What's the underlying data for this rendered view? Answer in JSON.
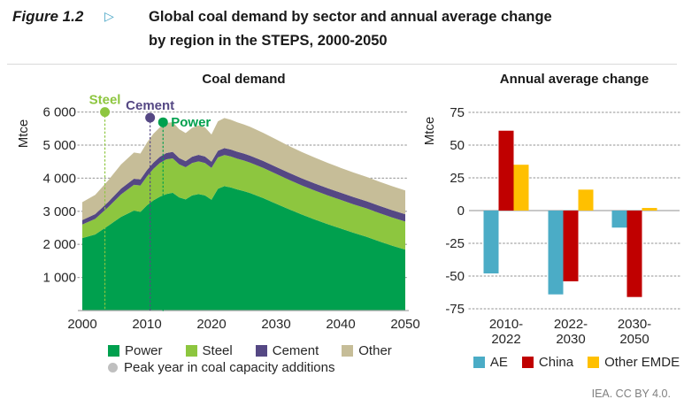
{
  "header": {
    "figure_label": "Figure 1.2",
    "figure_marker": "▷",
    "title_line1": "Global coal demand by sector and annual average change",
    "title_line2": "by region in the STEPS, 2000-2050"
  },
  "footer": {
    "credit": "IEA. CC BY 4.0."
  },
  "colors": {
    "accent_marker": "#44A3C4",
    "grid": "#A6A6A6",
    "axis_text": "#262626",
    "peak_marker_gray": "#BFBFBF"
  },
  "chart_data": [
    {
      "type": "area",
      "stacked": true,
      "title": "Coal demand",
      "ylabel": "Mtce",
      "ylim": [
        0,
        6000
      ],
      "yticks": [
        1000,
        2000,
        3000,
        4000,
        5000,
        6000
      ],
      "xticks": [
        2000,
        2010,
        2020,
        2030,
        2040,
        2050
      ],
      "grid": "dotted",
      "x": [
        2000,
        2002,
        2004,
        2006,
        2008,
        2009,
        2010,
        2011,
        2012,
        2013,
        2014,
        2015,
        2016,
        2017,
        2018,
        2019,
        2020,
        2021,
        2022,
        2023,
        2024,
        2025,
        2026,
        2028,
        2030,
        2032,
        2034,
        2036,
        2038,
        2040,
        2042,
        2044,
        2046,
        2048,
        2050
      ],
      "series": [
        {
          "name": "Power",
          "color": "#00A04E",
          "values": [
            2190,
            2300,
            2560,
            2830,
            3020,
            2980,
            3180,
            3330,
            3440,
            3520,
            3560,
            3420,
            3360,
            3480,
            3520,
            3480,
            3350,
            3680,
            3760,
            3720,
            3660,
            3610,
            3550,
            3400,
            3230,
            3060,
            2900,
            2750,
            2610,
            2480,
            2350,
            2230,
            2090,
            1960,
            1840
          ]
        },
        {
          "name": "Steel",
          "color": "#8DC63F",
          "values": [
            410,
            470,
            560,
            680,
            780,
            800,
            870,
            950,
            1020,
            1050,
            1040,
            1000,
            970,
            980,
            990,
            980,
            960,
            950,
            940,
            935,
            930,
            925,
            920,
            910,
            900,
            890,
            880,
            875,
            870,
            865,
            860,
            858,
            855,
            852,
            850
          ]
        },
        {
          "name": "Cement",
          "color": "#554884",
          "values": [
            135,
            145,
            160,
            175,
            185,
            185,
            190,
            190,
            185,
            190,
            195,
            190,
            185,
            190,
            195,
            195,
            190,
            200,
            210,
            210,
            210,
            210,
            210,
            212,
            213,
            214,
            215,
            216,
            217,
            218,
            218,
            219,
            219,
            220,
            220
          ]
        },
        {
          "name": "Other",
          "color": "#C6BD98",
          "values": [
            540,
            580,
            650,
            730,
            790,
            780,
            830,
            870,
            890,
            910,
            900,
            870,
            850,
            870,
            890,
            880,
            820,
            890,
            910,
            900,
            890,
            880,
            870,
            850,
            830,
            810,
            795,
            780,
            765,
            750,
            742,
            735,
            730,
            725,
            720
          ]
        }
      ],
      "annotations": {
        "legend_note": "Peak year in coal capacity additions",
        "note_marker_color": "#BFBFBF",
        "peaks": [
          {
            "sector": "Steel",
            "year_approx": 2003.5,
            "dot_value": 6000,
            "color": "#8DC63F",
            "label_side": "above"
          },
          {
            "sector": "Cement",
            "year_approx": 2010.5,
            "dot_value": 5830,
            "color": "#554884",
            "label_side": "above"
          },
          {
            "sector": "Power",
            "year_approx": 2012.5,
            "dot_value": 5690,
            "color": "#00A04E",
            "label_side": "right"
          }
        ]
      }
    },
    {
      "type": "bar",
      "title": "Annual average change",
      "ylabel": "Mtce",
      "ylim": [
        -75,
        75
      ],
      "yticks": [
        -75,
        -50,
        -25,
        0,
        25,
        50,
        75
      ],
      "grid": "dotted",
      "categories": [
        "2010-2022",
        "2022-2030",
        "2030-2050"
      ],
      "category_lines": [
        [
          "2010-",
          "2022"
        ],
        [
          "2022-",
          "2030"
        ],
        [
          "2030-",
          "2050"
        ]
      ],
      "series": [
        {
          "name": "AE",
          "color": "#4BACC6",
          "values": [
            -48,
            -64,
            -13
          ]
        },
        {
          "name": "China",
          "color": "#C00000",
          "values": [
            61,
            -54,
            -66
          ]
        },
        {
          "name": "Other EMDE",
          "color": "#FFC000",
          "values": [
            35,
            16,
            2
          ]
        }
      ]
    }
  ]
}
